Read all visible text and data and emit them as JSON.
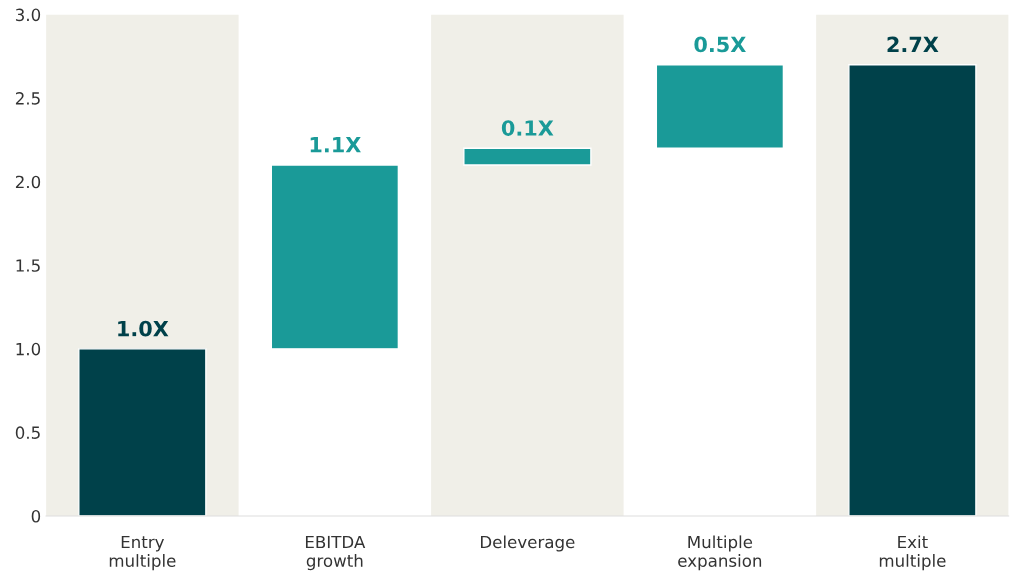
{
  "chart_data": {
    "type": "bar",
    "categories": [
      "Entry\nmultiple",
      "EBITDA\ngrowth",
      "Deleverage",
      "Multiple\nexpansion",
      "Exit\nmultiple"
    ],
    "values": [
      1.0,
      1.1,
      0.1,
      0.5,
      2.7
    ],
    "base": [
      0,
      1.0,
      2.1,
      2.2,
      0
    ],
    "colors": [
      "#00414a",
      "#1a9a98",
      "#1a9a98",
      "#1a9a98",
      "#00414a"
    ],
    "value_labels": [
      "1.0X",
      "1.1X",
      "0.1X",
      "0.5X",
      "2.7X"
    ],
    "ylim": [
      0,
      3
    ],
    "yticks": [
      0,
      {
        "value": 0.5,
        "label": "0.5"
      },
      {
        "value": 1,
        "label": "1.0"
      },
      {
        "value": 1.5,
        "label": "1.5"
      },
      {
        "value": 2,
        "label": "2.0"
      },
      {
        "value": 2.5,
        "label": "2.5"
      },
      {
        "value": 3,
        "label": "3.0"
      }
    ],
    "bands": [
      {
        "axis": "x",
        "from": "Entry\nmultiple",
        "to": "Entry\nmultiple",
        "color": "#f0efe8"
      },
      {
        "axis": "x",
        "from": "Deleverage",
        "to": "Deleverage",
        "color": "#f0efe8"
      },
      {
        "axis": "x",
        "from": "Exit\nmultiple",
        "to": "Exit\nmultiple",
        "color": "#f0efe8"
      }
    ]
  }
}
